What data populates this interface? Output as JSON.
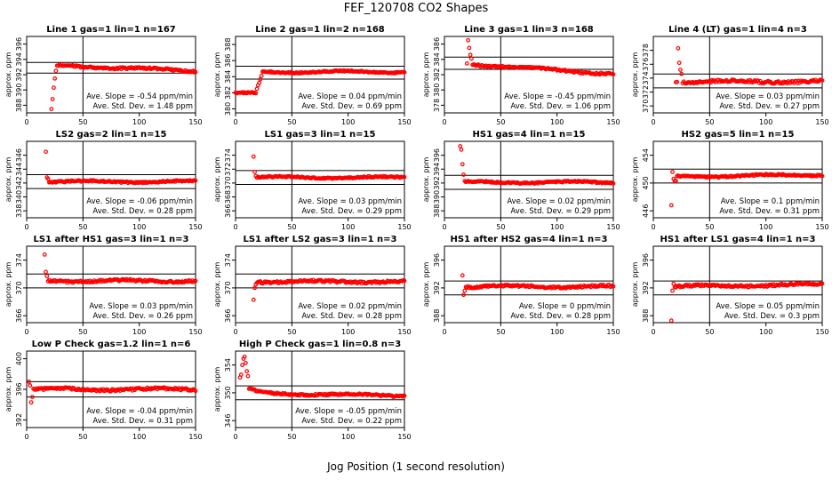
{
  "title": "FEF_120708  CO2 Shapes",
  "xlabel": "Jog Position (1 second resolution)",
  "colors": {
    "points": "#ff0000",
    "axes": "#000000"
  },
  "chart_data": [
    {
      "type": "scatter",
      "title": "Line 1 gas=1 lin=1 n=167",
      "ylabel": "approx. ppm",
      "xlim": [
        0,
        150
      ],
      "xticks": [
        0,
        50,
        100,
        150
      ],
      "ylim": [
        387,
        397
      ],
      "yticks": [
        388,
        390,
        392,
        394,
        396
      ],
      "hlines": [
        392.2,
        393.6
      ],
      "vline": 50,
      "slope_text": "Ave. Slope = -0.54 ppm/min",
      "std_text": "Ave. Std. Dev. = 1.48 ppm",
      "profile": {
        "start": 22,
        "end": 150,
        "plateau": 393.0,
        "spike": [
          [
            22,
            387.5
          ],
          [
            23,
            388.8
          ],
          [
            24,
            390.3
          ],
          [
            25,
            391.5
          ],
          [
            26,
            392.5
          ]
        ],
        "drift": -0.5,
        "noise": 0.12
      }
    },
    {
      "type": "scatter",
      "title": "Line 2 gas=1 lin=2 n=168",
      "ylabel": "approx. ppm",
      "xlim": [
        0,
        150
      ],
      "xticks": [
        0,
        50,
        100,
        150
      ],
      "ylim": [
        379.5,
        389
      ],
      "yticks": [
        380,
        382,
        384,
        386,
        388
      ],
      "hlines": [
        383.7,
        385.3
      ],
      "vline": 50,
      "slope_text": "Ave. Slope = 0.04 ppm/min",
      "std_text": "Ave. Std. Dev. = 0.69 ppm",
      "profile": {
        "start": 0,
        "end": 150,
        "plateau": 384.6,
        "step": {
          "from": 382.0,
          "at": 18,
          "width": 6
        },
        "drift": 0,
        "noise": 0.08
      }
    },
    {
      "type": "scatter",
      "title": "Line 3 gas=1 lin=3 n=168",
      "ylabel": "approx. ppm",
      "xlim": [
        0,
        150
      ],
      "xticks": [
        0,
        50,
        100,
        150
      ],
      "ylim": [
        377,
        387
      ],
      "yticks": [
        378,
        380,
        382,
        384,
        386
      ],
      "hlines": [
        382.7,
        384.3
      ],
      "vline": 50,
      "slope_text": "Ave. Slope = -0.45 ppm/min",
      "std_text": "Ave. Std. Dev. = 1.06 ppm",
      "profile": {
        "start": 20,
        "end": 150,
        "plateau": 383.0,
        "spike": [
          [
            21,
            386.5
          ],
          [
            22,
            385.5
          ],
          [
            23,
            384.6
          ],
          [
            24,
            384.1
          ]
        ],
        "drift": -0.9,
        "noise": 0.12
      }
    },
    {
      "type": "scatter",
      "title": "Line 4 (LT) gas=1 lin=4 n=3",
      "ylabel": "approx. ppm",
      "xlim": [
        0,
        150
      ],
      "xticks": [
        0,
        50,
        100,
        150
      ],
      "ylim": [
        369,
        380
      ],
      "yticks": [
        370,
        372,
        374,
        376,
        378
      ],
      "hlines": [
        372.6,
        374.6
      ],
      "vline": 50,
      "slope_text": "Ave. Slope = 0.03 ppm/min",
      "std_text": "Ave. Std. Dev. = 0.27 ppm",
      "profile": {
        "start": 20,
        "end": 150,
        "plateau": 373.5,
        "spike": [
          [
            22,
            378.3
          ],
          [
            23,
            376.2
          ],
          [
            24,
            375.2
          ],
          [
            25,
            374.6
          ]
        ],
        "drift": 0,
        "noise": 0.18
      }
    },
    {
      "type": "scatter",
      "title": "LS2 gas=2 lin=1 n=15",
      "ylabel": "approx. ppm",
      "xlim": [
        0,
        150
      ],
      "xticks": [
        0,
        50,
        100,
        150
      ],
      "ylim": [
        337,
        348
      ],
      "yticks": [
        338,
        340,
        342,
        344,
        346
      ],
      "hlines": [
        341.2,
        343.2
      ],
      "vline": 50,
      "slope_text": "Ave. Slope = -0.06 ppm/min",
      "std_text": "Ave. Std. Dev. = 0.28 ppm",
      "profile": {
        "start": 17,
        "end": 150,
        "plateau": 342.2,
        "spike": [
          [
            17,
            346.5
          ],
          [
            18,
            342.8
          ],
          [
            19,
            342.6
          ]
        ],
        "drift": 0,
        "noise": 0.1
      }
    },
    {
      "type": "scatter",
      "title": "LS1 gas=3 lin=1 n=15",
      "ylabel": "approx. ppm",
      "xlim": [
        0,
        150
      ],
      "xticks": [
        0,
        50,
        100,
        150
      ],
      "ylim": [
        365,
        376
      ],
      "yticks": [
        366,
        368,
        370,
        372,
        374
      ],
      "hlines": [
        369.8,
        371.8
      ],
      "vline": 50,
      "slope_text": "Ave. Slope = 0.03 ppm/min",
      "std_text": "Ave. Std. Dev. = 0.29 ppm",
      "profile": {
        "start": 16,
        "end": 150,
        "plateau": 370.8,
        "spike": [
          [
            16,
            373.8
          ],
          [
            17,
            371.6
          ],
          [
            18,
            371.0
          ]
        ],
        "drift": 0,
        "noise": 0.1
      }
    },
    {
      "type": "scatter",
      "title": "HS1 gas=4 lin=1 n=15",
      "ylabel": "approx. ppm",
      "xlim": [
        0,
        150
      ],
      "xticks": [
        0,
        50,
        100,
        150
      ],
      "ylim": [
        387,
        398
      ],
      "yticks": [
        388,
        390,
        392,
        394,
        396
      ],
      "hlines": [
        391.1,
        393.1
      ],
      "vline": 50,
      "slope_text": "Ave. Slope = 0.02 ppm/min",
      "std_text": "Ave. Std. Dev. = 0.29 ppm",
      "profile": {
        "start": 14,
        "end": 150,
        "plateau": 392.1,
        "spike": [
          [
            14,
            397.3
          ],
          [
            15,
            396.8
          ],
          [
            16,
            394.7
          ],
          [
            17,
            393.2
          ]
        ],
        "drift": 0,
        "noise": 0.1
      }
    },
    {
      "type": "scatter",
      "title": "HS2 gas=5 lin=1 n=15",
      "ylabel": "approx. ppm",
      "xlim": [
        0,
        150
      ],
      "xticks": [
        0,
        50,
        100,
        150
      ],
      "ylim": [
        445,
        456
      ],
      "yticks": [
        446,
        450,
        454
      ],
      "hlines": [
        450,
        452
      ],
      "vline": 50,
      "slope_text": "Ave. Slope = 0.1 ppm/min",
      "std_text": "Ave. Std. Dev. = 0.31 ppm",
      "profile": {
        "start": 16,
        "end": 150,
        "plateau": 451.0,
        "spike": [
          [
            16,
            446.8
          ],
          [
            17,
            451.6
          ],
          [
            18,
            450.6
          ],
          [
            19,
            450.3
          ],
          [
            20,
            450.3
          ]
        ],
        "drift": 0.2,
        "noise": 0.1
      }
    },
    {
      "type": "scatter",
      "title": "LS1 after HS1 gas=3 lin=1 n=3",
      "ylabel": "approx. ppm",
      "xlim": [
        0,
        150
      ],
      "xticks": [
        0,
        50,
        100,
        150
      ],
      "ylim": [
        365,
        376
      ],
      "yticks": [
        366,
        370,
        374
      ],
      "hlines": [
        370,
        372
      ],
      "vline": 50,
      "slope_text": "Ave. Slope = 0.03 ppm/min",
      "std_text": "Ave. Std. Dev. = 0.26 ppm",
      "profile": {
        "start": 16,
        "end": 150,
        "plateau": 371.0,
        "spike": [
          [
            16,
            374.8
          ],
          [
            17,
            372.3
          ],
          [
            18,
            371.7
          ]
        ],
        "drift": 0,
        "noise": 0.15
      }
    },
    {
      "type": "scatter",
      "title": "LS1 after LS2 gas=3 lin=1 n=3",
      "ylabel": "approx. ppm",
      "xlim": [
        0,
        150
      ],
      "xticks": [
        0,
        50,
        100,
        150
      ],
      "ylim": [
        365,
        376
      ],
      "yticks": [
        366,
        370,
        374
      ],
      "hlines": [
        370,
        372
      ],
      "vline": 50,
      "slope_text": "Ave. Slope = 0.02 ppm/min",
      "std_text": "Ave. Std. Dev. = 0.28 ppm",
      "profile": {
        "start": 16,
        "end": 150,
        "plateau": 370.9,
        "spike": [
          [
            16,
            368.3
          ],
          [
            17,
            370.0
          ],
          [
            18,
            370.5
          ]
        ],
        "drift": 0,
        "noise": 0.15
      }
    },
    {
      "type": "scatter",
      "title": "HS1 after HS2 gas=4 lin=1 n=3",
      "ylabel": "approx. ppm",
      "xlim": [
        0,
        150
      ],
      "xticks": [
        0,
        50,
        100,
        150
      ],
      "ylim": [
        387,
        398
      ],
      "yticks": [
        388,
        392,
        396
      ],
      "hlines": [
        391,
        393
      ],
      "vline": 50,
      "slope_text": "Ave. Slope = 0 ppm/min",
      "std_text": "Ave. Std. Dev. = 0.28 ppm",
      "profile": {
        "start": 16,
        "end": 150,
        "plateau": 392.2,
        "spike": [
          [
            16,
            393.8
          ],
          [
            17,
            391.0
          ],
          [
            18,
            391.6
          ]
        ],
        "drift": 0,
        "noise": 0.15
      }
    },
    {
      "type": "scatter",
      "title": "HS1 after LS1 gas=4 lin=1 n=3",
      "ylabel": "approx. ppm",
      "xlim": [
        0,
        150
      ],
      "xticks": [
        0,
        50,
        100,
        150
      ],
      "ylim": [
        387,
        398
      ],
      "yticks": [
        388,
        392,
        396
      ],
      "hlines": [
        391,
        393
      ],
      "vline": 50,
      "slope_text": "Ave. Slope = 0.05 ppm/min",
      "std_text": "Ave. Std. Dev. = 0.3 ppm",
      "profile": {
        "start": 16,
        "end": 150,
        "plateau": 392.3,
        "spike": [
          [
            16,
            387.3
          ],
          [
            17,
            391.6
          ],
          [
            18,
            392.6
          ]
        ],
        "drift": 0.2,
        "noise": 0.15
      }
    },
    {
      "type": "scatter",
      "title": "Low P Check gas=1.2 lin=1 n=6",
      "ylabel": "approx. ppm",
      "xlim": [
        0,
        150
      ],
      "xticks": [
        0,
        50,
        100,
        150
      ],
      "ylim": [
        391,
        401
      ],
      "yticks": [
        392,
        396,
        400
      ],
      "hlines": [
        395,
        397
      ],
      "vline": 50,
      "slope_text": "Ave. Slope = -0.04 ppm/min",
      "std_text": "Ave. Std. Dev. = 0.31 ppm",
      "profile": {
        "start": 2,
        "end": 150,
        "plateau": 396.0,
        "spike": [
          [
            2,
            397.0
          ],
          [
            3,
            396.5
          ],
          [
            4,
            394.3
          ],
          [
            5,
            395.0
          ]
        ],
        "drift": 0,
        "noise": 0.15
      }
    },
    {
      "type": "scatter",
      "title": "High P Check gas=1 lin=0.8 n=3",
      "ylabel": "approx. ppm",
      "xlim": [
        0,
        150
      ],
      "xticks": [
        0,
        50,
        100,
        150
      ],
      "ylim": [
        345,
        356
      ],
      "yticks": [
        346,
        350,
        354
      ],
      "hlines": [
        349,
        351
      ],
      "vline": 50,
      "slope_text": "Ave. Slope = -0.05 ppm/min",
      "std_text": "Ave. Std. Dev. = 0.22 ppm",
      "profile": {
        "start": 4,
        "end": 150,
        "plateau": 349.8,
        "decay": {
          "peak": 355.0,
          "tau": 9
        },
        "spike": [
          [
            4,
            352.2
          ],
          [
            5,
            352.6
          ],
          [
            6,
            354.0
          ],
          [
            7,
            354.9
          ],
          [
            8,
            355.2
          ],
          [
            9,
            354.3
          ],
          [
            10,
            353.1
          ],
          [
            11,
            352.4
          ]
        ],
        "drift": -0.2,
        "noise": 0.12
      }
    }
  ]
}
